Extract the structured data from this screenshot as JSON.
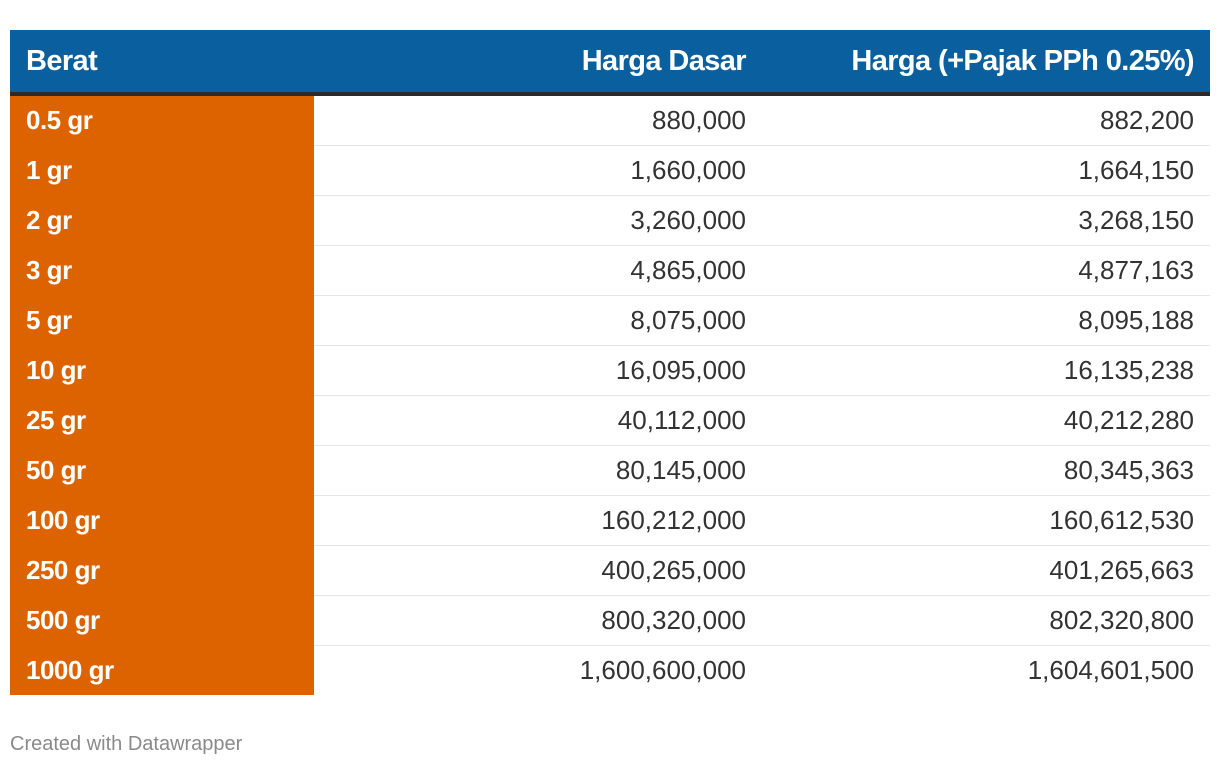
{
  "chart_data": {
    "type": "table",
    "columns": [
      "Berat",
      "Harga Dasar",
      "Harga (+Pajak PPh 0.25%)"
    ],
    "rows": [
      [
        "0.5 gr",
        "880,000",
        "882,200"
      ],
      [
        "1 gr",
        "1,660,000",
        "1,664,150"
      ],
      [
        "2 gr",
        "3,260,000",
        "3,268,150"
      ],
      [
        "3 gr",
        "4,865,000",
        "4,877,163"
      ],
      [
        "5 gr",
        "8,075,000",
        "8,095,188"
      ],
      [
        "10 gr",
        "16,095,000",
        "16,135,238"
      ],
      [
        "25 gr",
        "40,112,000",
        "40,212,280"
      ],
      [
        "50 gr",
        "80,145,000",
        "80,345,363"
      ],
      [
        "100 gr",
        "160,212,000",
        "160,612,530"
      ],
      [
        "250 gr",
        "400,265,000",
        "401,265,663"
      ],
      [
        "500 gr",
        "800,320,000",
        "802,320,800"
      ],
      [
        "1000 gr",
        "1,600,600,000",
        "1,604,601,500"
      ]
    ],
    "header_color": "#0a5f9e",
    "first_column_color": "#dc6300"
  },
  "footer": {
    "credit": "Created with Datawrapper"
  }
}
